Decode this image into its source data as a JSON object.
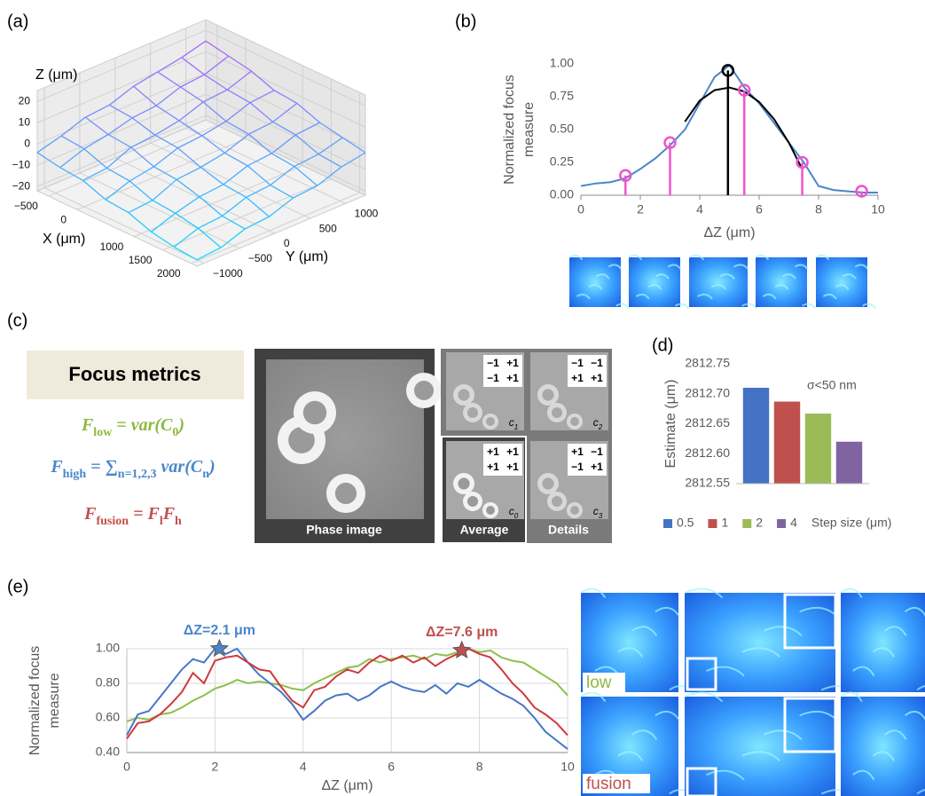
{
  "panel_labels": [
    "(a)",
    "(b)",
    "(c)",
    "(d)",
    "(e)"
  ],
  "chart_data": [
    {
      "type": "surface",
      "zlabel": "Z (μm)",
      "xlabel": "X (μm)",
      "ylabel": "Y (μm)",
      "x": [
        -700,
        -300,
        100,
        500,
        900,
        1300,
        1700,
        2100
      ],
      "y": [
        -1100,
        -760,
        -420,
        -80,
        260,
        600,
        940,
        1280
      ],
      "z": [
        [
          -4,
          -1,
          3,
          4,
          8,
          10,
          12,
          15
        ],
        [
          -6,
          -2,
          0,
          3,
          4,
          8,
          9,
          13
        ],
        [
          -7,
          -6,
          -1,
          0,
          2,
          6,
          7,
          11
        ],
        [
          -11,
          -7,
          -5,
          -1,
          0,
          2,
          6,
          7
        ],
        [
          -12,
          -11,
          -6,
          -5,
          -3,
          1,
          2,
          6
        ],
        [
          -16,
          -12,
          -9,
          -8,
          -4,
          -3,
          1,
          2
        ],
        [
          -18,
          -14,
          -13,
          -9,
          -8,
          -4,
          -3,
          0
        ],
        [
          -19,
          -18,
          -14,
          -13,
          -9,
          -8,
          -4,
          -2
        ]
      ],
      "xlim": [
        -700,
        2100
      ],
      "ylim": [
        -1100,
        1280
      ],
      "zlim": [
        -22,
        25
      ],
      "xticks": [
        {
          "value": -500,
          "label": "−500"
        },
        0,
        1000,
        1500,
        2000
      ],
      "yticks": [
        {
          "value": -1000,
          "label": "−1000"
        },
        {
          "value": -500,
          "label": "−500"
        },
        0,
        500,
        1000
      ],
      "zticks": [
        {
          "value": -20,
          "label": "−20"
        },
        {
          "value": -10,
          "label": "−10"
        },
        0,
        10,
        20
      ],
      "colors": [
        "#00e5ff",
        "#e040fb"
      ]
    },
    {
      "type": "line",
      "ylabel": [
        "Normalized focus",
        "measure"
      ],
      "xlabel": "ΔZ (μm)",
      "xlim": [
        0,
        10
      ],
      "ylim": [
        0,
        1
      ],
      "xticks": [
        0,
        2,
        4,
        6,
        8,
        10
      ],
      "yticks": [
        {
          "value": 0,
          "label": "0.00"
        },
        {
          "value": 0.25,
          "label": "0.25"
        },
        {
          "value": 0.5,
          "label": "0.50"
        },
        {
          "value": 0.75,
          "label": "0.75"
        },
        {
          "value": 1,
          "label": "1.00"
        }
      ],
      "grid": false,
      "series": [
        {
          "color": "#4a86c8",
          "x": [
            0,
            0.5,
            1,
            1.5,
            2,
            2.5,
            3,
            3.5,
            4,
            4.5,
            5,
            5.5,
            6,
            6.5,
            7,
            7.5,
            8,
            8.5,
            9,
            9.5,
            10
          ],
          "values": [
            0.07,
            0.09,
            0.1,
            0.13,
            0.2,
            0.28,
            0.38,
            0.5,
            0.7,
            0.9,
            0.99,
            0.82,
            0.7,
            0.55,
            0.4,
            0.25,
            0.07,
            0.04,
            0.03,
            0.02,
            0.02
          ]
        },
        {
          "color": "#000000",
          "x": [
            3.5,
            4,
            4.5,
            5,
            5.5,
            6,
            6.5,
            7,
            7.4
          ],
          "values": [
            0.56,
            0.72,
            0.8,
            0.82,
            0.79,
            0.71,
            0.58,
            0.4,
            0.22
          ]
        },
        {
          "type": "stem",
          "color": "#ee55cc",
          "x": [
            1.5,
            3,
            5.5,
            7.45,
            9.45
          ],
          "values": [
            0.15,
            0.4,
            0.8,
            0.25,
            0.03
          ]
        },
        {
          "type": "stem",
          "color": "#000000",
          "x": [
            4.95
          ],
          "values": [
            0.95
          ]
        }
      ]
    },
    {
      "type": "bar",
      "ylabel": "Estimate (μm)",
      "categories": [
        "0.5",
        "1",
        "2",
        "4"
      ],
      "colors": [
        "#4472c4",
        "#c0504d",
        "#9bbb59",
        "#8064a2"
      ],
      "values": [
        2812.71,
        2812.687,
        2812.667,
        2812.62
      ],
      "ylim": [
        2812.55,
        2812.75
      ],
      "yticks": [
        2812.55,
        {
          "value": 2812.6,
          "label": "2812.60"
        },
        2812.65,
        {
          "value": 2812.7,
          "label": "2812.70"
        },
        2812.75
      ],
      "annotation": "σ<50 nm",
      "legend_title": "Step size (μm)",
      "legend": "bottom"
    },
    {
      "type": "line",
      "ylabel": [
        "Normalized focus",
        "measure"
      ],
      "xlabel": "ΔZ (μm)",
      "xlim": [
        0,
        10
      ],
      "ylim": [
        0.4,
        1
      ],
      "xticks": [
        0,
        2,
        4,
        6,
        8,
        10
      ],
      "yticks": [
        {
          "value": 0.4,
          "label": "0.40"
        },
        {
          "value": 0.6,
          "label": "0.60"
        },
        {
          "value": 0.8,
          "label": "0.80"
        },
        {
          "value": 1,
          "label": "1.00"
        }
      ],
      "grid": true,
      "x": [
        0,
        0.25,
        0.5,
        0.75,
        1,
        1.25,
        1.5,
        1.75,
        2,
        2.25,
        2.5,
        2.75,
        3,
        3.25,
        3.5,
        3.75,
        4,
        4.25,
        4.5,
        4.75,
        5,
        5.25,
        5.5,
        5.75,
        6,
        6.25,
        6.5,
        6.75,
        7,
        7.25,
        7.5,
        7.75,
        8,
        8.25,
        8.5,
        8.75,
        9,
        9.25,
        9.5,
        9.75,
        10
      ],
      "series": [
        {
          "color": "#8cc04f",
          "values": [
            0.58,
            0.6,
            0.59,
            0.62,
            0.63,
            0.66,
            0.7,
            0.73,
            0.77,
            0.79,
            0.82,
            0.8,
            0.81,
            0.8,
            0.79,
            0.77,
            0.76,
            0.8,
            0.83,
            0.86,
            0.89,
            0.9,
            0.94,
            0.92,
            0.94,
            0.95,
            0.96,
            0.94,
            0.97,
            0.96,
            0.98,
            1,
            0.98,
            0.99,
            0.95,
            0.93,
            0.92,
            0.88,
            0.84,
            0.8,
            0.73
          ]
        },
        {
          "color": "#4677c8",
          "values": [
            0.5,
            0.62,
            0.64,
            0.72,
            0.8,
            0.88,
            0.94,
            0.92,
            1,
            0.97,
            1,
            0.92,
            0.85,
            0.8,
            0.75,
            0.68,
            0.59,
            0.64,
            0.7,
            0.73,
            0.74,
            0.7,
            0.73,
            0.78,
            0.81,
            0.78,
            0.76,
            0.75,
            0.79,
            0.74,
            0.8,
            0.78,
            0.82,
            0.78,
            0.74,
            0.71,
            0.67,
            0.6,
            0.52,
            0.47,
            0.42
          ]
        },
        {
          "color": "#d0393b",
          "values": [
            0.48,
            0.57,
            0.58,
            0.62,
            0.68,
            0.75,
            0.86,
            0.8,
            0.93,
            0.95,
            0.96,
            0.92,
            0.88,
            0.87,
            0.78,
            0.7,
            0.66,
            0.76,
            0.78,
            0.84,
            0.88,
            0.86,
            0.92,
            0.96,
            0.93,
            0.96,
            0.92,
            0.95,
            0.9,
            0.94,
            0.97,
            1,
            0.97,
            0.95,
            0.88,
            0.8,
            0.74,
            0.66,
            0.62,
            0.57,
            0.5
          ]
        }
      ],
      "annotations": [
        {
          "text": "ΔZ=2.1 μm",
          "x": 2.1,
          "y": 1,
          "color": "#4a86c8"
        },
        {
          "text": "ΔZ=7.6 μm",
          "x": 7.6,
          "y": 0.99,
          "color": "#c0504d"
        }
      ]
    }
  ],
  "focus_metrics": {
    "title": "Focus metrics",
    "formulas": [
      {
        "color": "#8db940",
        "parts": [
          {
            "text": "F"
          },
          {
            "sub": "low"
          },
          {
            "text": " = var(C"
          },
          {
            "sub": "0"
          },
          {
            "text": ")"
          }
        ]
      },
      {
        "color": "#4a86c8",
        "parts": [
          {
            "text": "F"
          },
          {
            "sub": "high"
          },
          {
            "text": " = ∑"
          },
          {
            "sub": "n=1,2,3"
          },
          {
            "text": " var(C"
          },
          {
            "sub": "n"
          },
          {
            "text": ")"
          }
        ]
      },
      {
        "color": "#c0504d",
        "parts": [
          {
            "text": "F"
          },
          {
            "sub": "fusion"
          },
          {
            "text": " = F"
          },
          {
            "sub": "l"
          },
          {
            "text": "F"
          },
          {
            "sub": "h"
          }
        ]
      }
    ]
  },
  "decomposition": {
    "phase_label": "Phase image",
    "average_label": "Average",
    "details_label": "Details",
    "subbands": [
      {
        "label": "c",
        "sub": "1",
        "matrix": [
          [
            "−1",
            "+1"
          ],
          [
            "−1",
            "+1"
          ]
        ]
      },
      {
        "label": "c",
        "sub": "2",
        "matrix": [
          [
            "−1",
            "−1"
          ],
          [
            "+1",
            "+1"
          ]
        ]
      },
      {
        "label": "c",
        "sub": "0",
        "matrix": [
          [
            "+1",
            "+1"
          ],
          [
            "+1",
            "+1"
          ]
        ]
      },
      {
        "label": "c",
        "sub": "3",
        "matrix": [
          [
            "+1",
            "−1"
          ],
          [
            "−1",
            "+1"
          ]
        ]
      }
    ]
  },
  "image_labels": [
    "low",
    "fusion"
  ]
}
